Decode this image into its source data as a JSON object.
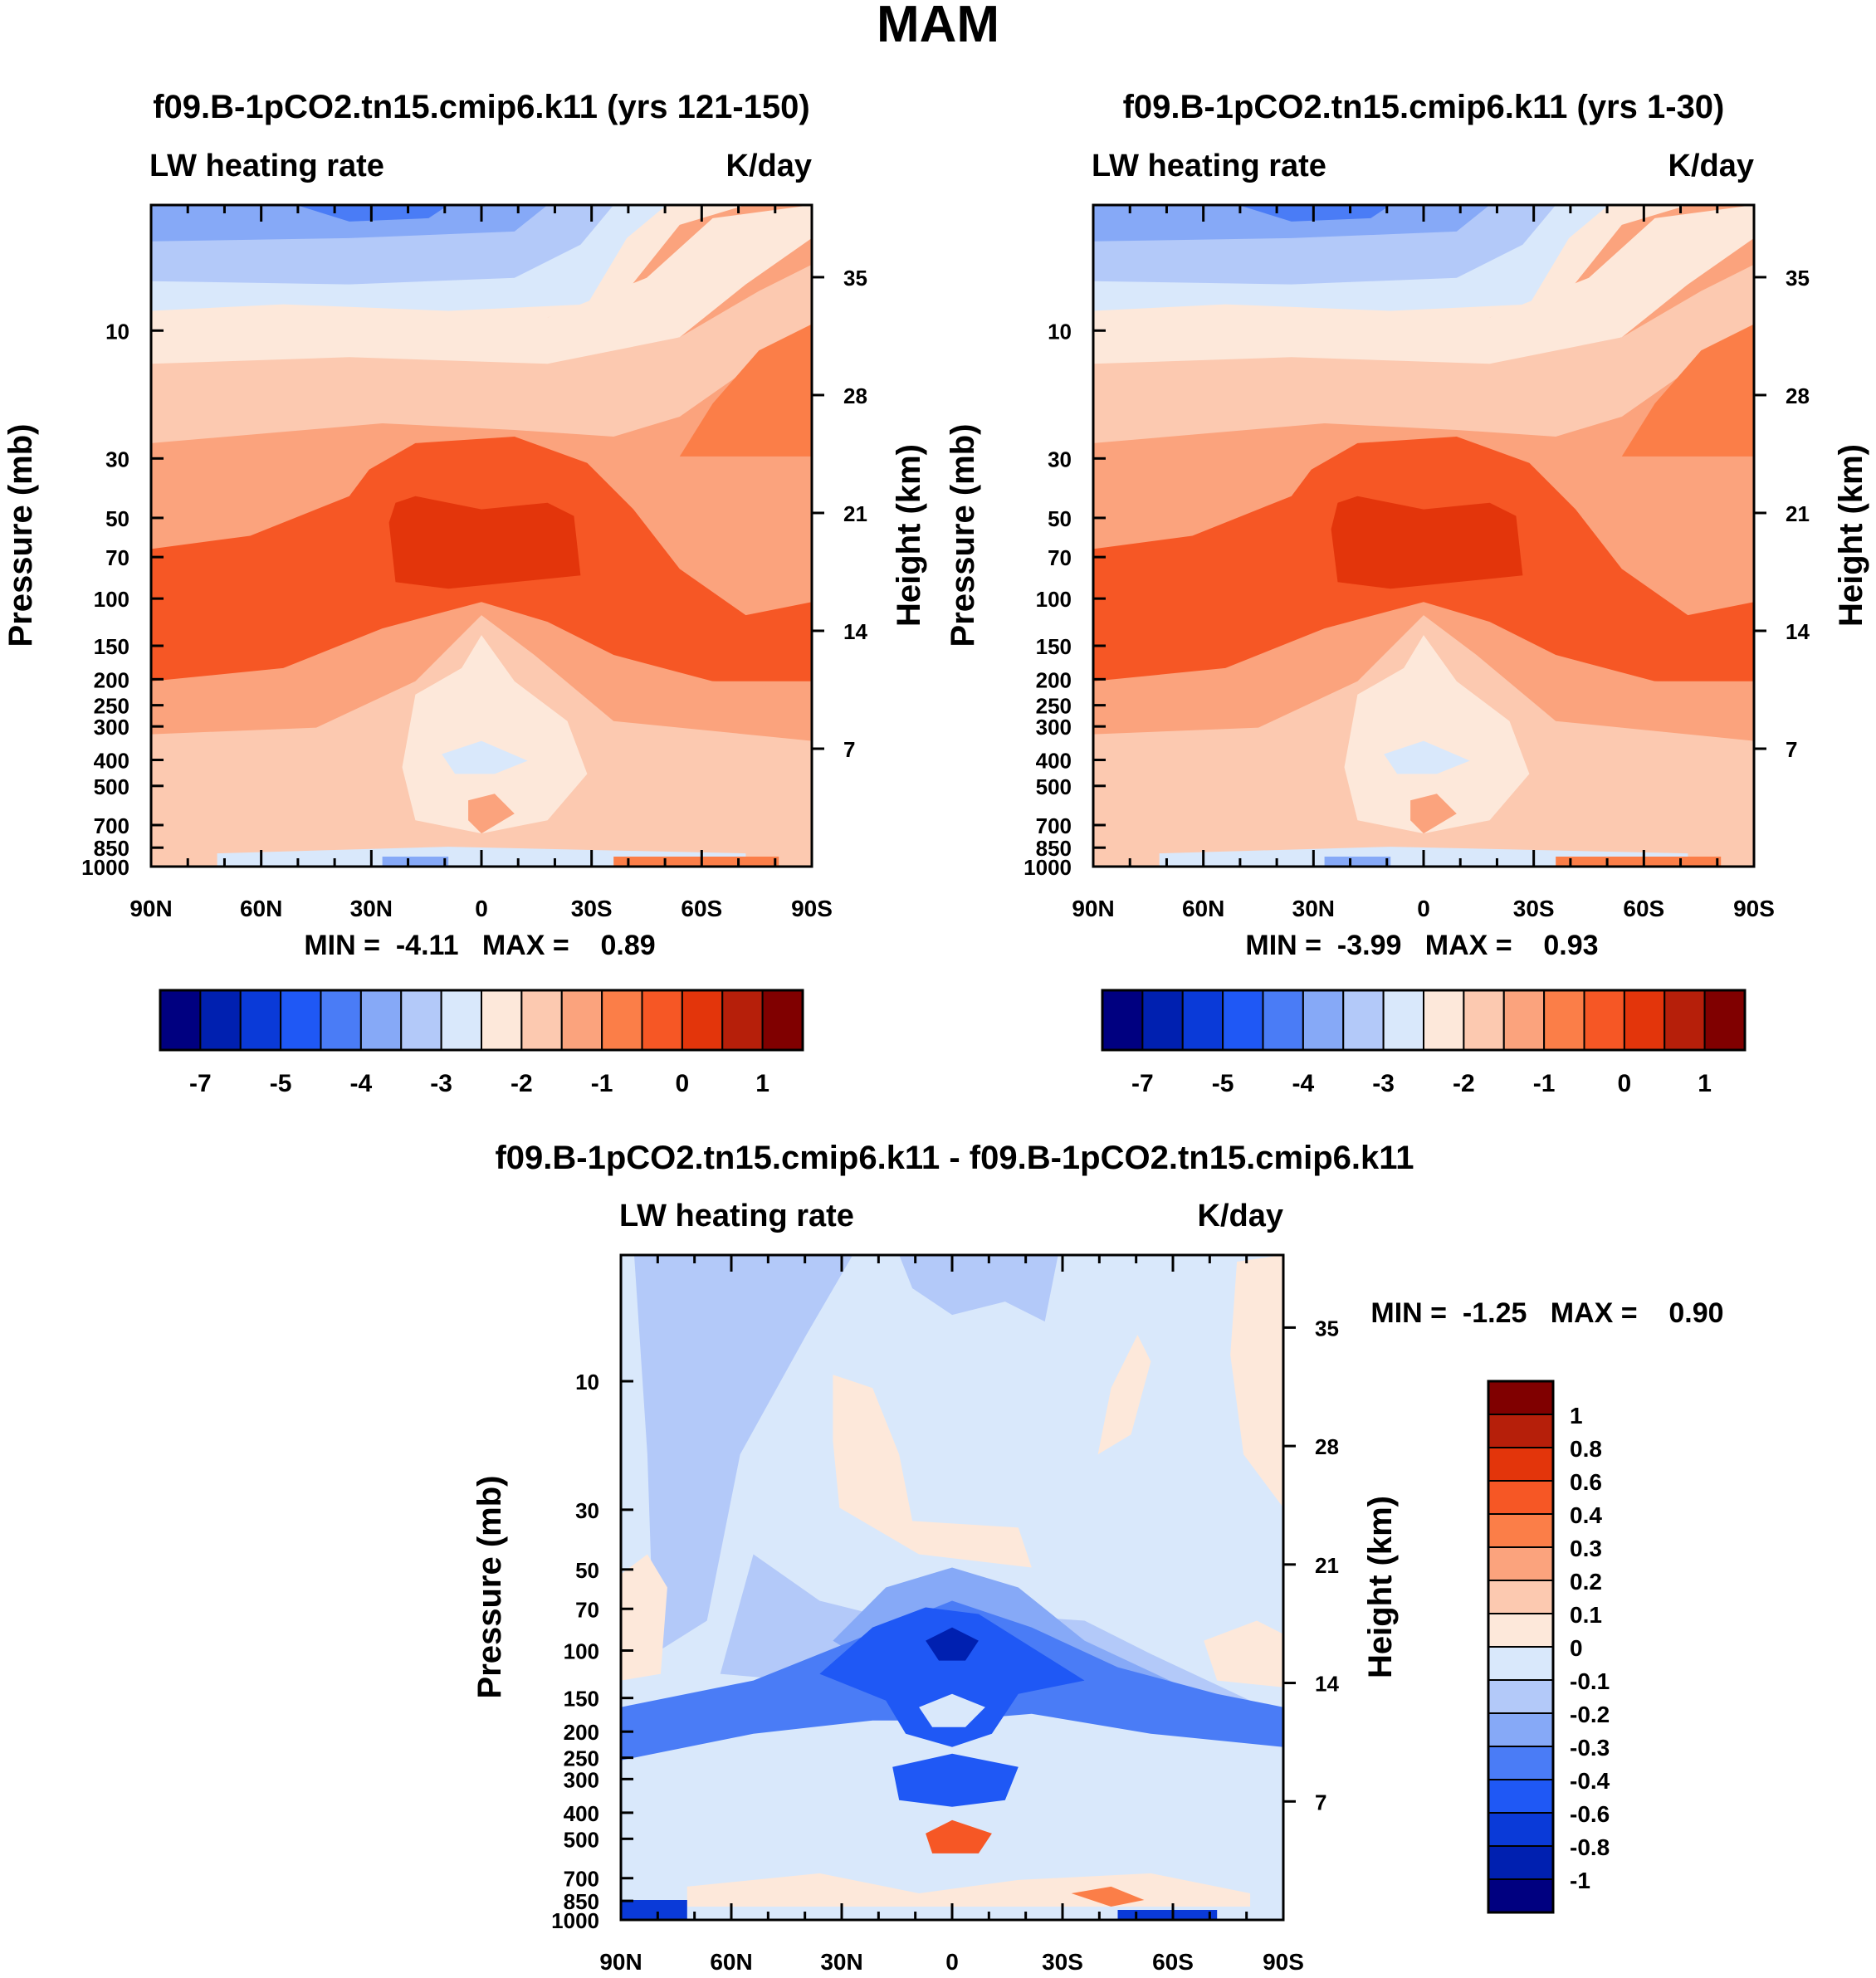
{
  "season_title": "MAM",
  "colors": {
    "scale": [
      "#000080",
      "#0020b0",
      "#0a3ad8",
      "#1f58f5",
      "#4a7cf6",
      "#86a9f7",
      "#b3c9f9",
      "#d9e8fb",
      "#fde8da",
      "#fcc9b0",
      "#fba37d",
      "#fb7e48",
      "#f65725",
      "#e3350b",
      "#b61f0a",
      "#800000"
    ]
  },
  "chart_data": [
    {
      "type": "heatmap",
      "id": "panel-a",
      "title": "f09.B-1pCO2.tn15.cmip6.k11 (yrs 121-150)",
      "left_label": "LW heating rate",
      "right_label": "K/day",
      "ylabel": "Pressure (mb)",
      "y2label": "Height (km)",
      "x_ticks": [
        "90N",
        "60N",
        "30N",
        "0",
        "30S",
        "60S",
        "90S"
      ],
      "y_ticks": [
        "10",
        "30",
        "50",
        "70",
        "100",
        "150",
        "200",
        "250",
        "300",
        "400",
        "500",
        "700",
        "850",
        "1000"
      ],
      "y2_ticks": [
        "35",
        "28",
        "21",
        "14",
        "7"
      ],
      "stats": "MIN =  -4.11   MAX =    0.89",
      "stats_values": {
        "min": -4.11,
        "max": 0.89
      },
      "colorbar_labels": [
        "-7",
        "-5",
        "-4",
        "-3",
        "-2",
        "-1",
        "0",
        "1"
      ],
      "variant": 0
    },
    {
      "type": "heatmap",
      "id": "panel-b",
      "title": "f09.B-1pCO2.tn15.cmip6.k11 (yrs 1-30)",
      "left_label": "LW heating rate",
      "right_label": "K/day",
      "ylabel": "Pressure (mb)",
      "y2label": "Height (km)",
      "x_ticks": [
        "90N",
        "60N",
        "30N",
        "0",
        "30S",
        "60S",
        "90S"
      ],
      "y_ticks": [
        "10",
        "30",
        "50",
        "70",
        "100",
        "150",
        "200",
        "250",
        "300",
        "400",
        "500",
        "700",
        "850",
        "1000"
      ],
      "y2_ticks": [
        "35",
        "28",
        "21",
        "14",
        "7"
      ],
      "stats": "MIN =  -3.99   MAX =    0.93",
      "stats_values": {
        "min": -3.99,
        "max": 0.93
      },
      "colorbar_labels": [
        "-7",
        "-5",
        "-4",
        "-3",
        "-2",
        "-1",
        "0",
        "1"
      ],
      "variant": 1
    },
    {
      "type": "heatmap",
      "id": "panel-diff",
      "title": "f09.B-1pCO2.tn15.cmip6.k11 - f09.B-1pCO2.tn15.cmip6.k11",
      "left_label": "LW heating rate",
      "right_label": "K/day",
      "ylabel": "Pressure (mb)",
      "y2label": "Height (km)",
      "x_ticks": [
        "90N",
        "60N",
        "30N",
        "0",
        "30S",
        "60S",
        "90S"
      ],
      "y_ticks": [
        "10",
        "30",
        "50",
        "70",
        "100",
        "150",
        "200",
        "250",
        "300",
        "400",
        "500",
        "700",
        "850",
        "1000"
      ],
      "y2_ticks": [
        "35",
        "28",
        "21",
        "14",
        "7"
      ],
      "stats": "MIN =  -1.25   MAX =    0.90",
      "stats_values": {
        "min": -1.25,
        "max": 0.9
      },
      "colorbar_labels": [
        "1",
        "0.8",
        "0.6",
        "0.4",
        "0.3",
        "0.2",
        "0.1",
        "0",
        "-0.1",
        "-0.2",
        "-0.3",
        "-0.4",
        "-0.6",
        "-0.8",
        "-1"
      ]
    }
  ]
}
